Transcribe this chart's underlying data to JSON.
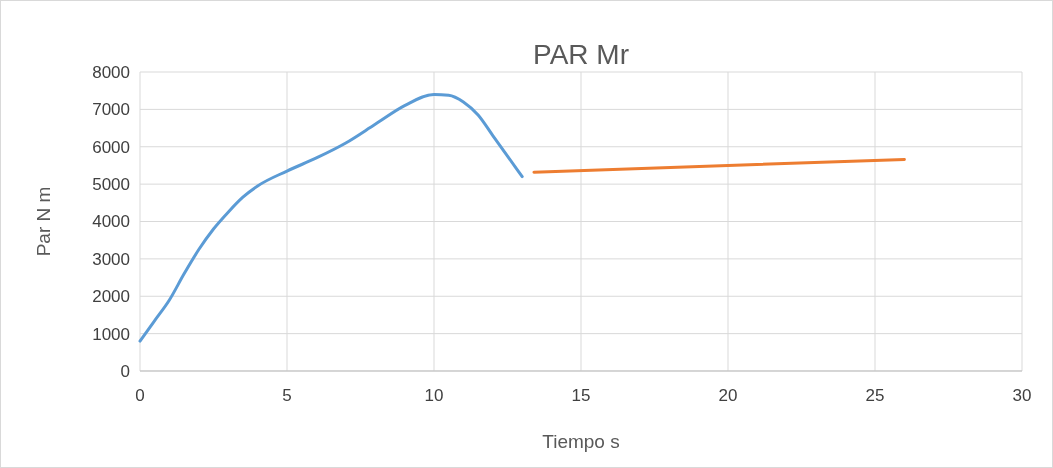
{
  "chart_data": {
    "type": "line",
    "title": "PAR Mr",
    "xlabel": "Tiempo s",
    "ylabel": "Par N m",
    "series": [
      {
        "color": "#5b9bd5",
        "x": [
          0,
          0.5,
          1,
          1.5,
          2,
          2.5,
          3,
          3.5,
          4,
          5,
          6,
          7,
          8,
          9,
          10,
          10.5,
          11,
          11.5,
          12,
          12.5,
          13
        ],
        "values": [
          800,
          1350,
          1900,
          2600,
          3250,
          3800,
          4250,
          4650,
          4950,
          5350,
          5700,
          6100,
          6600,
          7100,
          7400,
          7380,
          7200,
          6850,
          6300,
          5750,
          5200
        ]
      },
      {
        "color": "#ed7d31",
        "x": [
          13.4,
          26
        ],
        "values": [
          5320,
          5660
        ]
      }
    ],
    "xlim": [
      0,
      30
    ],
    "xticks": [
      0,
      5,
      10,
      15,
      20,
      25,
      30
    ],
    "ylim": [
      0,
      8000
    ],
    "yticks": [
      0,
      1000,
      2000,
      3000,
      4000,
      5000,
      6000,
      7000,
      8000
    ],
    "grid": true,
    "marker": "none",
    "line_style": "solid"
  }
}
